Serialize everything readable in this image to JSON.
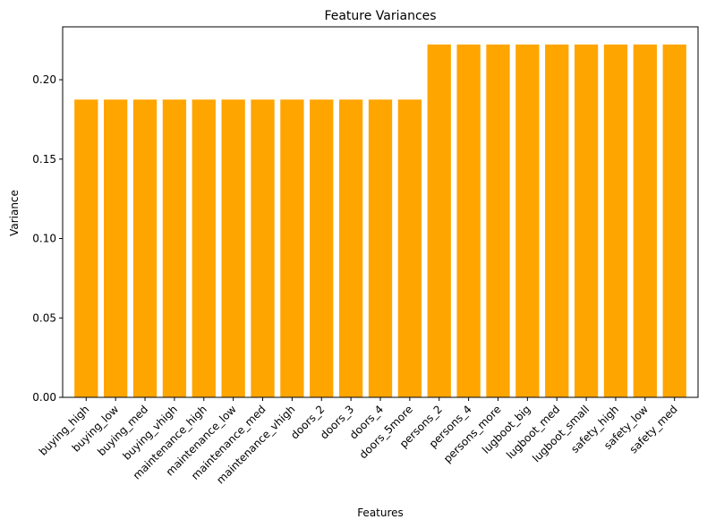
{
  "chart_data": {
    "type": "bar",
    "title": "Feature Variances",
    "xlabel": "Features",
    "ylabel": "Variance",
    "categories": [
      "buying_high",
      "buying_low",
      "buying_med",
      "buying_vhigh",
      "maintenance_high",
      "maintenance_low",
      "maintenance_med",
      "maintenance_vhigh",
      "doors_2",
      "doors_3",
      "doors_4",
      "doors_5more",
      "persons_2",
      "persons_4",
      "persons_more",
      "lugboot_big",
      "lugboot_med",
      "lugboot_small",
      "safety_high",
      "safety_low",
      "safety_med"
    ],
    "values": [
      0.1875,
      0.1875,
      0.1875,
      0.1875,
      0.1875,
      0.1875,
      0.1875,
      0.1875,
      0.1875,
      0.1875,
      0.1875,
      0.1875,
      0.2222,
      0.2222,
      0.2222,
      0.2222,
      0.2222,
      0.2222,
      0.2222,
      0.2222,
      0.2222
    ],
    "bar_color": "#ffa500",
    "ylim": [
      0,
      0.2333
    ],
    "yticks": [
      0.0,
      0.05,
      0.1,
      0.15,
      0.2
    ],
    "ytick_labels": [
      "0.00",
      "0.05",
      "0.10",
      "0.15",
      "0.20"
    ],
    "grid": false,
    "legend": false
  }
}
